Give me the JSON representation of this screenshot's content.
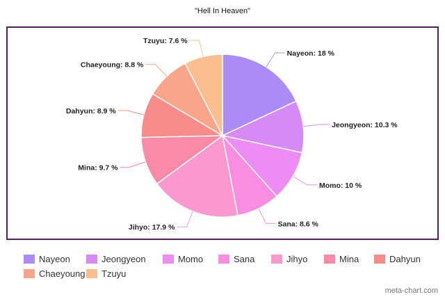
{
  "chart_data": {
    "type": "pie",
    "title": "\"Hell In Heaven\"",
    "start_angle_deg": 0,
    "direction": "clockwise",
    "legend_placement": "bottom",
    "slices": [
      {
        "name": "Nayeon",
        "value": 18,
        "label": "Nayeon: 18 %",
        "color": "#ab8cf7"
      },
      {
        "name": "Jeongyeon",
        "value": 10.3,
        "label": "Jeongyeon: 10.3 %",
        "color": "#d68af6"
      },
      {
        "name": "Momo",
        "value": 10,
        "label": "Momo: 10 %",
        "color": "#ee8cf6"
      },
      {
        "name": "Sana",
        "value": 8.6,
        "label": "Sana: 8.6 %",
        "color": "#f98de1"
      },
      {
        "name": "Jihyo",
        "value": 17.9,
        "label": "Jihyo: 17.9 %",
        "color": "#fb98cd"
      },
      {
        "name": "Mina",
        "value": 9.7,
        "label": "Mina: 9.7 %",
        "color": "#f98aa6"
      },
      {
        "name": "Dahyun",
        "value": 8.9,
        "label": "Dahyun: 8.9 %",
        "color": "#f88c8a"
      },
      {
        "name": "Chaeyoung",
        "value": 8.8,
        "label": "Chaeyoung: 8.8 %",
        "color": "#f9a58a"
      },
      {
        "name": "Tzuyu",
        "value": 7.6,
        "label": "Tzuyu: 7.6 %",
        "color": "#fbbe8e"
      }
    ]
  },
  "frame_color": "#5a1e5e",
  "watermark": "meta-chart.com"
}
